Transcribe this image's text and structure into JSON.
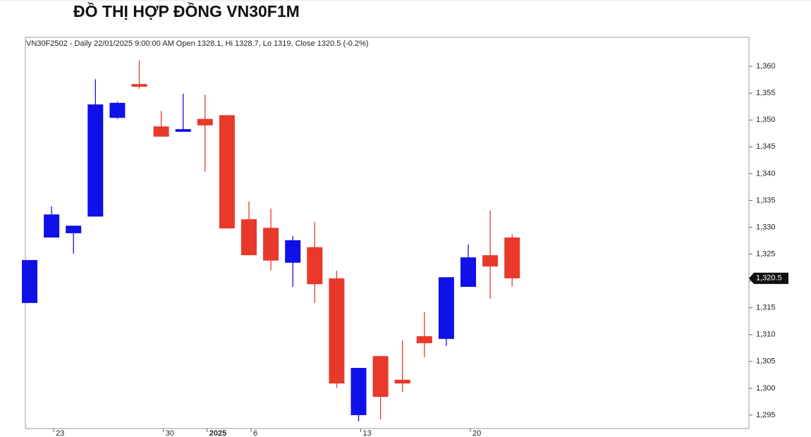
{
  "chart_data": {
    "type": "candlestick",
    "title": "ĐỒ THỊ HỢP ĐỒNG VN30F1M",
    "subtitle": "VN30F2502 - Daily 22/01/2025 9:00:00 AM Open 1328.1, Hi 1328.7, Lo 1319, Close 1320.5 (-0.2%)",
    "categories": [
      null,
      "23",
      null,
      null,
      null,
      null,
      "30",
      null,
      "2025",
      null,
      "6",
      null,
      null,
      null,
      null,
      "13",
      null,
      null,
      null,
      null,
      "20",
      null,
      null
    ],
    "open": [
      1315.9,
      1328.1,
      1328.9,
      1332.0,
      1350.4,
      1356.7,
      1348.8,
      1347.8,
      1350.2,
      1350.9,
      1331.5,
      1329.9,
      1323.4,
      1326.3,
      1320.5,
      1295.0,
      1306.0,
      1301.6,
      1309.7,
      1309.2,
      1318.9,
      1324.8,
      1328.1
    ],
    "high": [
      1323.9,
      1333.9,
      1330.3,
      1357.6,
      1353.4,
      1361.1,
      1351.7,
      1354.9,
      1354.7,
      1350.9,
      1334.8,
      1333.5,
      1328.4,
      1331.0,
      1321.9,
      1303.8,
      1306.0,
      1308.9,
      1314.2,
      1320.7,
      1326.8,
      1333.1,
      1328.7
    ],
    "low": [
      1315.9,
      1328.1,
      1325.1,
      1332.0,
      1350.2,
      1355.8,
      1346.9,
      1347.8,
      1340.4,
      1329.8,
      1324.8,
      1322.0,
      1318.9,
      1315.9,
      1300.1,
      1293.8,
      1294.2,
      1299.3,
      1305.8,
      1307.9,
      1318.9,
      1316.7,
      1319.0
    ],
    "close": [
      1323.9,
      1332.4,
      1330.3,
      1352.9,
      1353.2,
      1356.2,
      1346.9,
      1348.3,
      1349.0,
      1329.8,
      1324.8,
      1323.8,
      1327.6,
      1319.4,
      1300.9,
      1303.8,
      1298.4,
      1300.9,
      1308.4,
      1320.7,
      1324.4,
      1322.7,
      1320.5
    ],
    "up_color": "#1010e8",
    "down_color": "#e8392a",
    "ylim": [
      1292.5,
      1365.4
    ],
    "yticks": [
      {
        "value": 1295,
        "label": "1,295"
      },
      {
        "value": 1300,
        "label": "1,300"
      },
      {
        "value": 1305,
        "label": "1,305"
      },
      {
        "value": 1310,
        "label": "1,310"
      },
      {
        "value": 1315,
        "label": "1,315"
      },
      {
        "value": 1320,
        "label": "1,320"
      },
      {
        "value": 1325,
        "label": "1,325"
      },
      {
        "value": 1330,
        "label": "1,330"
      },
      {
        "value": 1335,
        "label": "1,335"
      },
      {
        "value": 1340,
        "label": "1,340"
      },
      {
        "value": 1345,
        "label": "1,345"
      },
      {
        "value": 1350,
        "label": "1,350"
      },
      {
        "value": 1355,
        "label": "1,355"
      },
      {
        "value": 1360,
        "label": "1,360"
      }
    ],
    "last_price": {
      "value": 1320.5,
      "label": "1,320.5"
    }
  }
}
